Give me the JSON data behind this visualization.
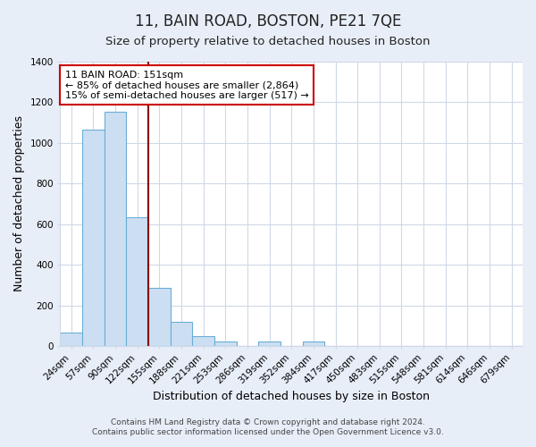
{
  "title": "11, BAIN ROAD, BOSTON, PE21 7QE",
  "subtitle": "Size of property relative to detached houses in Boston",
  "xlabel": "Distribution of detached houses by size in Boston",
  "ylabel": "Number of detached properties",
  "footer_line1": "Contains HM Land Registry data © Crown copyright and database right 2024.",
  "footer_line2": "Contains public sector information licensed under the Open Government Licence v3.0.",
  "bar_labels": [
    "24sqm",
    "57sqm",
    "90sqm",
    "122sqm",
    "155sqm",
    "188sqm",
    "221sqm",
    "253sqm",
    "286sqm",
    "319sqm",
    "352sqm",
    "384sqm",
    "417sqm",
    "450sqm",
    "483sqm",
    "515sqm",
    "548sqm",
    "581sqm",
    "614sqm",
    "646sqm",
    "679sqm"
  ],
  "bar_values": [
    65,
    1065,
    1155,
    635,
    285,
    120,
    47,
    22,
    0,
    22,
    0,
    22,
    0,
    0,
    0,
    0,
    0,
    0,
    0,
    0,
    0
  ],
  "bar_color": "#ccdff2",
  "bar_edge_color": "#6aaed6",
  "ylim": [
    0,
    1400
  ],
  "yticks": [
    0,
    200,
    400,
    600,
    800,
    1000,
    1200,
    1400
  ],
  "vline_color": "#8b0000",
  "annotation_text": "11 BAIN ROAD: 151sqm\n← 85% of detached houses are smaller (2,864)\n15% of semi-detached houses are larger (517) →",
  "annotation_box_color": "#ffffff",
  "annotation_box_edge_color": "#cc0000",
  "bg_color": "#e8eef8",
  "plot_bg_color": "#ffffff",
  "grid_color": "#d0d8e8",
  "title_fontsize": 12,
  "subtitle_fontsize": 9.5,
  "axis_label_fontsize": 9,
  "tick_fontsize": 7.5,
  "annotation_fontsize": 8,
  "footer_fontsize": 6.5
}
